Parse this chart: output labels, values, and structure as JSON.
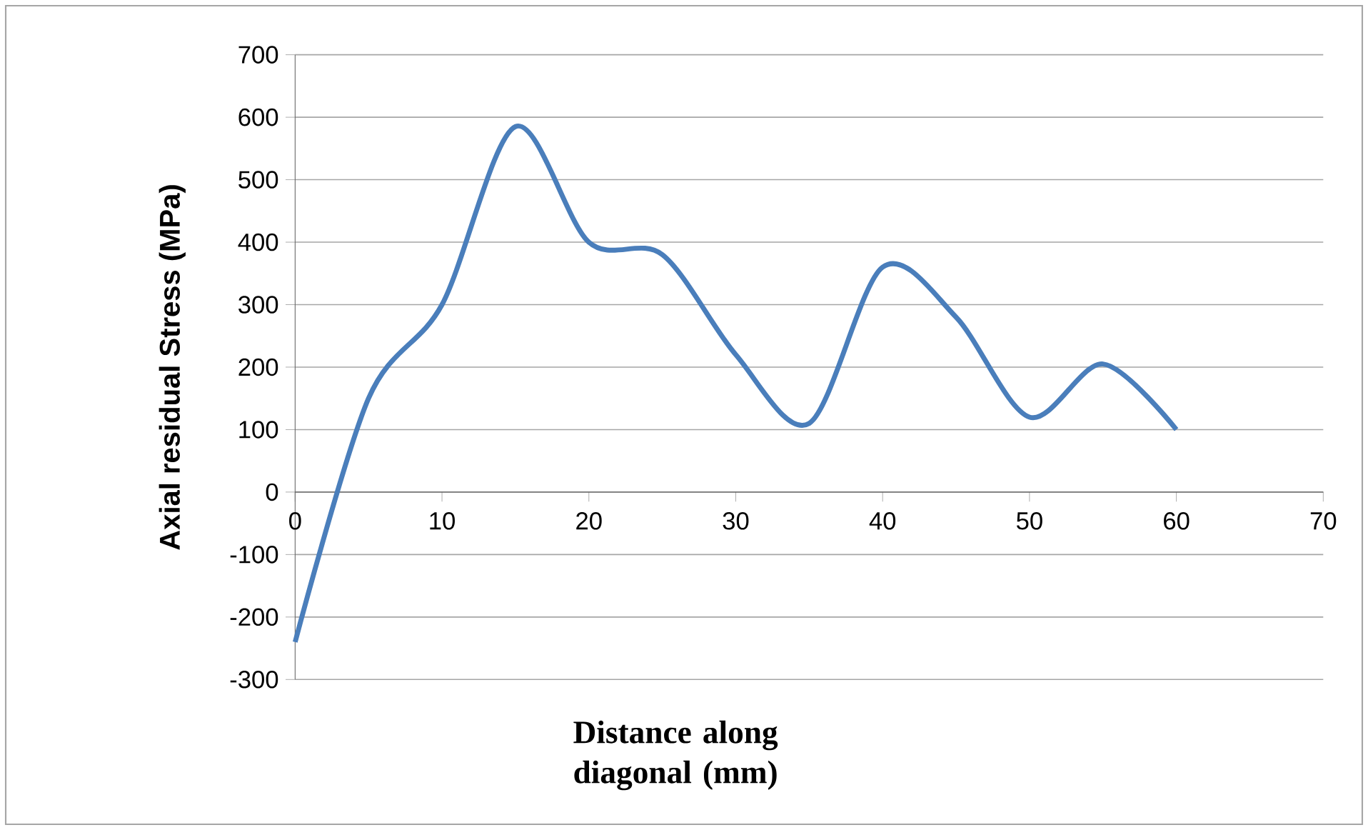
{
  "chart_data": {
    "type": "line",
    "xlabel": "Distance along diagonal (mm)",
    "ylabel": "Axial residual Stress (MPa)",
    "x": [
      0,
      5,
      10,
      15,
      20,
      25,
      30,
      35,
      40,
      45,
      50,
      55,
      60
    ],
    "series": [
      {
        "color": "#4a7ebb",
        "values": [
          -240,
          150,
          300,
          585,
          400,
          380,
          220,
          110,
          360,
          280,
          120,
          205,
          100
        ]
      }
    ],
    "xlim": [
      0,
      70
    ],
    "xticks": [
      0,
      10,
      20,
      30,
      40,
      50,
      60,
      70
    ],
    "ylim": [
      -300,
      700
    ],
    "yticks": [
      -300,
      -200,
      -100,
      0,
      100,
      200,
      300,
      400,
      500,
      600,
      700
    ],
    "grid": "y",
    "marker": "none",
    "line_style": "solid"
  }
}
